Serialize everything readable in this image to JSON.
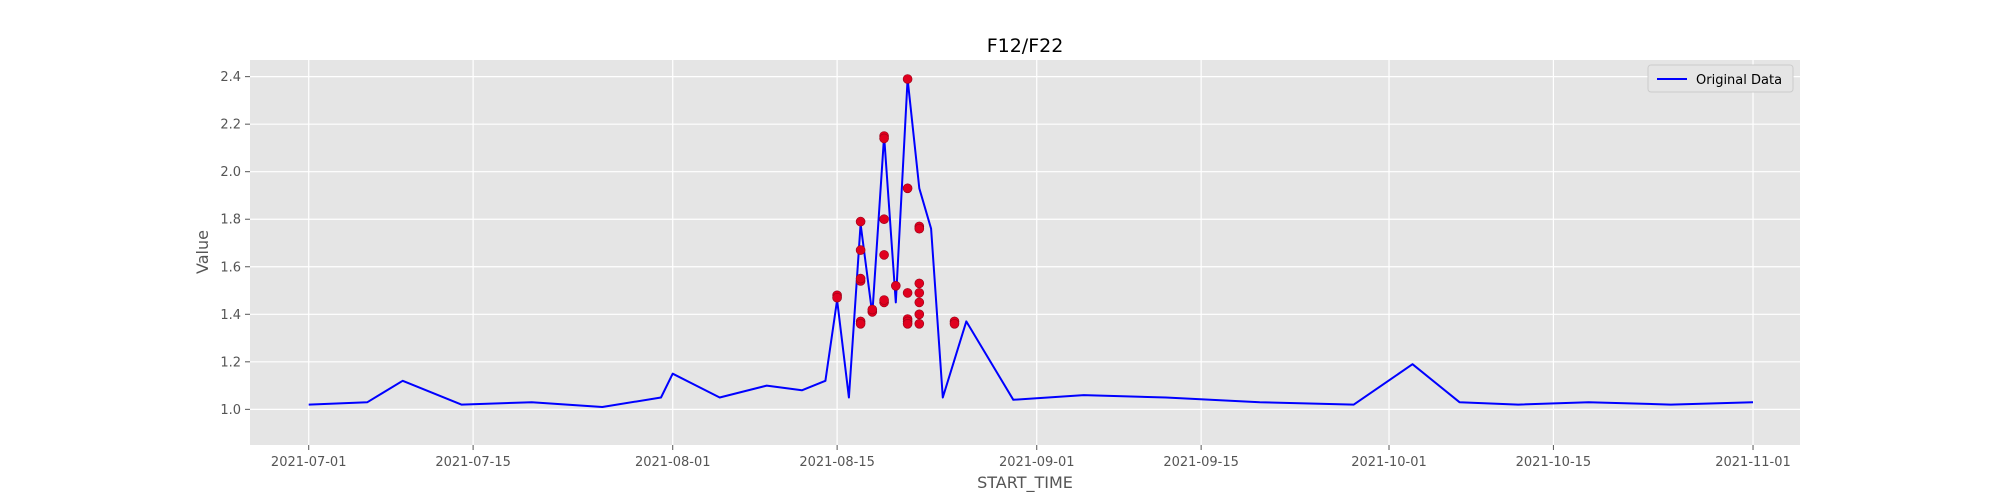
{
  "chart_data": {
    "type": "line",
    "title": "F12/F22",
    "xlabel": "START_TIME",
    "ylabel": "Value",
    "xlim": [
      "2021-06-26",
      "2021-11-05"
    ],
    "ylim": [
      0.85,
      2.47
    ],
    "x_ticks": [
      "2021-07-01",
      "2021-07-15",
      "2021-08-01",
      "2021-08-15",
      "2021-09-01",
      "2021-09-15",
      "2021-10-01",
      "2021-10-15",
      "2021-11-01"
    ],
    "y_ticks": [
      1.0,
      1.2,
      1.4,
      1.6,
      1.8,
      2.0,
      2.2,
      2.4
    ],
    "y_tick_labels": [
      "1.0",
      "1.2",
      "1.4",
      "1.6",
      "1.8",
      "2.0",
      "2.2",
      "2.4"
    ],
    "grid": true,
    "legend_position": "top-right",
    "series": [
      {
        "name": "Original Data",
        "color": "#0000ff",
        "style": "line",
        "x": [
          "2021-07-01",
          "2021-07-06",
          "2021-07-09",
          "2021-07-14",
          "2021-07-20",
          "2021-07-26",
          "2021-07-31",
          "2021-08-01",
          "2021-08-05",
          "2021-08-09",
          "2021-08-12",
          "2021-08-14",
          "2021-08-15",
          "2021-08-16",
          "2021-08-17",
          "2021-08-18",
          "2021-08-19",
          "2021-08-20",
          "2021-08-21",
          "2021-08-22",
          "2021-08-23",
          "2021-08-24",
          "2021-08-26",
          "2021-08-30",
          "2021-09-05",
          "2021-09-12",
          "2021-09-20",
          "2021-09-28",
          "2021-10-03",
          "2021-10-07",
          "2021-10-12",
          "2021-10-18",
          "2021-10-25",
          "2021-11-01"
        ],
        "y": [
          1.02,
          1.03,
          1.12,
          1.02,
          1.03,
          1.01,
          1.05,
          1.15,
          1.05,
          1.1,
          1.08,
          1.12,
          1.46,
          1.05,
          1.78,
          1.4,
          2.15,
          1.45,
          2.39,
          1.93,
          1.76,
          1.05,
          1.37,
          1.04,
          1.06,
          1.05,
          1.03,
          1.02,
          1.19,
          1.03,
          1.02,
          1.03,
          1.02,
          1.03
        ]
      },
      {
        "name": "",
        "color": "#e0001e",
        "style": "markers",
        "x": [
          "2021-08-15",
          "2021-08-15",
          "2021-08-17",
          "2021-08-17",
          "2021-08-17",
          "2021-08-17",
          "2021-08-17",
          "2021-08-17",
          "2021-08-18",
          "2021-08-18",
          "2021-08-19",
          "2021-08-19",
          "2021-08-19",
          "2021-08-19",
          "2021-08-19",
          "2021-08-19",
          "2021-08-20",
          "2021-08-21",
          "2021-08-21",
          "2021-08-21",
          "2021-08-21",
          "2021-08-21",
          "2021-08-21",
          "2021-08-22",
          "2021-08-22",
          "2021-08-22",
          "2021-08-22",
          "2021-08-22",
          "2021-08-22",
          "2021-08-22",
          "2021-08-25",
          "2021-08-25"
        ],
        "y": [
          1.48,
          1.47,
          1.37,
          1.54,
          1.36,
          1.79,
          1.67,
          1.55,
          1.41,
          1.42,
          1.8,
          1.65,
          2.15,
          2.14,
          1.45,
          1.46,
          1.52,
          2.39,
          1.38,
          1.49,
          1.93,
          1.37,
          1.36,
          1.77,
          1.76,
          1.53,
          1.49,
          1.45,
          1.4,
          1.36,
          1.37,
          1.36
        ]
      }
    ]
  }
}
